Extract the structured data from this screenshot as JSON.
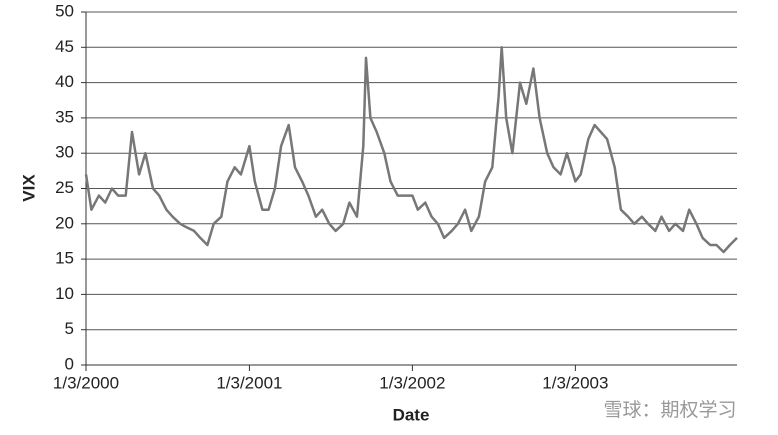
{
  "chart_data": {
    "type": "line",
    "xlabel": "Date",
    "ylabel": "VIX",
    "watermark": "雪球：期权学习",
    "x": [
      "1/3/2000",
      "1/15/2000",
      "2/1/2000",
      "2/15/2000",
      "3/1/2000",
      "3/15/2000",
      "4/1/2000",
      "4/15/2000",
      "5/1/2000",
      "5/15/2000",
      "6/1/2000",
      "6/15/2000",
      "7/1/2000",
      "7/15/2000",
      "8/1/2000",
      "8/15/2000",
      "9/1/2000",
      "9/15/2000",
      "10/1/2000",
      "10/15/2000",
      "11/1/2000",
      "11/15/2000",
      "12/1/2000",
      "12/15/2000",
      "1/3/2001",
      "1/15/2001",
      "2/1/2001",
      "2/15/2001",
      "3/1/2001",
      "3/15/2001",
      "4/1/2001",
      "4/15/2001",
      "5/1/2001",
      "5/15/2001",
      "6/1/2001",
      "6/15/2001",
      "7/1/2001",
      "7/15/2001",
      "8/1/2001",
      "8/15/2001",
      "9/1/2001",
      "9/15/2001",
      "9/21/2001",
      "10/1/2001",
      "10/15/2001",
      "11/1/2001",
      "11/15/2001",
      "12/1/2001",
      "12/15/2001",
      "1/3/2002",
      "1/15/2002",
      "2/1/2002",
      "2/15/2002",
      "3/1/2002",
      "3/15/2002",
      "4/1/2002",
      "4/15/2002",
      "5/1/2002",
      "5/15/2002",
      "6/1/2002",
      "6/15/2002",
      "7/1/2002",
      "7/15/2002",
      "7/22/2002",
      "8/1/2002",
      "8/15/2002",
      "9/1/2002",
      "9/15/2002",
      "10/1/2002",
      "10/15/2002",
      "11/1/2002",
      "11/15/2002",
      "12/1/2002",
      "12/15/2002",
      "1/3/2003",
      "1/15/2003",
      "2/1/2003",
      "2/15/2003",
      "3/1/2003",
      "3/15/2003",
      "4/1/2003",
      "4/15/2003",
      "5/1/2003",
      "5/15/2003",
      "6/1/2003",
      "6/15/2003",
      "7/1/2003",
      "7/15/2003",
      "8/1/2003",
      "8/15/2003",
      "9/1/2003",
      "9/15/2003",
      "10/1/2003",
      "10/15/2003",
      "11/1/2003",
      "11/15/2003",
      "12/1/2003",
      "12/15/2003",
      "12/31/2003"
    ],
    "values": [
      27,
      22,
      24,
      23,
      25,
      24,
      24,
      33,
      27,
      30,
      25,
      24,
      22,
      21,
      20,
      19.5,
      19,
      18,
      17,
      20,
      21,
      26,
      28,
      27,
      31,
      26,
      22,
      22,
      25,
      31,
      34,
      28,
      26,
      24,
      21,
      22,
      20,
      19,
      20,
      23,
      21,
      31,
      43.5,
      35,
      33,
      30,
      26,
      24,
      24,
      24,
      22,
      23,
      21,
      20,
      18,
      19,
      20,
      22,
      19,
      21,
      26,
      28,
      38,
      45,
      35,
      30,
      40,
      37,
      42,
      35,
      30,
      28,
      27,
      30,
      26,
      27,
      32,
      34,
      33,
      32,
      28,
      22,
      21,
      20,
      21,
      20,
      19,
      21,
      19,
      20,
      19,
      22,
      20,
      18,
      17,
      17,
      16,
      17,
      18
    ],
    "color": "#777777",
    "xlim": [
      "1/3/2000",
      "12/31/2003"
    ],
    "xticks": [
      "1/3/2000",
      "1/3/2001",
      "1/3/2002",
      "1/3/2003"
    ],
    "ylim": [
      0,
      50
    ],
    "yticks": [
      0,
      5,
      10,
      15,
      20,
      25,
      30,
      35,
      40,
      45,
      50
    ],
    "grid": true
  }
}
